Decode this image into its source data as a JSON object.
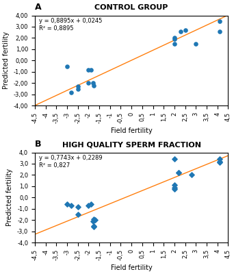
{
  "chart_data": [
    {
      "type": "scatter",
      "title": "CONTROL GROUP",
      "panel_label": "A",
      "annotations": [
        "y = 0,8895x + 0,0245",
        "R² = 0,8895"
      ],
      "slope": 0.8895,
      "intercept": 0.0245,
      "marker": "circle",
      "x": [
        -3.0,
        -2.8,
        -2.5,
        -2.0,
        -1.9,
        -1.8,
        -1.75,
        -2.5,
        -2.0,
        2.0,
        2.0,
        2.0,
        2.3,
        2.5,
        3.0,
        4.1,
        4.1
      ],
      "values": [
        -0.5,
        -2.8,
        -2.5,
        -0.8,
        -0.8,
        -2.0,
        -2.2,
        -2.3,
        -2.0,
        2.0,
        1.9,
        1.5,
        2.6,
        2.7,
        1.5,
        3.5,
        2.6
      ],
      "xlim": [
        -4.5,
        4.5
      ],
      "ylim": [
        -4.0,
        4.0
      ],
      "xticks": [
        {
          "value": -4.5,
          "label": "-4,5"
        },
        -4,
        {
          "value": -3.5,
          "label": "-3,5"
        },
        -3,
        {
          "value": -2.5,
          "label": "-2,5"
        },
        -2,
        {
          "value": -1.5,
          "label": "-1,5"
        },
        -1,
        {
          "value": -0.5,
          "label": "-0,5"
        },
        0,
        {
          "value": 0.5,
          "label": "0,5"
        },
        1,
        {
          "value": 1.5,
          "label": "1,5"
        },
        2,
        {
          "value": 2.5,
          "label": "2,5"
        },
        3,
        {
          "value": 3.5,
          "label": "3,5"
        },
        4,
        {
          "value": 4.5,
          "label": "4,5"
        }
      ],
      "yticks": [
        {
          "value": -4.0,
          "label": "-4,00"
        },
        {
          "value": -3.0,
          "label": "-3,00"
        },
        {
          "value": -2.0,
          "label": "-2,00"
        },
        {
          "value": -1.0,
          "label": "-1,00"
        },
        {
          "value": 0.0,
          "label": "0,00"
        },
        {
          "value": 1.0,
          "label": "1,00"
        },
        {
          "value": 2.0,
          "label": "2,00"
        },
        {
          "value": 3.0,
          "label": "3,00"
        },
        {
          "value": 4.0,
          "label": "4,00"
        }
      ],
      "xlabel": "Field fertility",
      "ylabel": "Predicted fertility",
      "grid": false
    },
    {
      "type": "scatter",
      "title": "HIGH QUALITY SPERM FRACTION",
      "panel_label": "B",
      "annotations": [
        "y = 0,7743x + 0,2289",
        "R² = 0,827"
      ],
      "slope": 0.7743,
      "intercept": 0.2289,
      "marker": "diamond",
      "x": [
        -3.0,
        -2.8,
        -2.5,
        -2.5,
        -2.0,
        -1.9,
        -1.8,
        -1.75,
        -1.75,
        -1.75,
        -1.7,
        2.0,
        2.0,
        2.0,
        2.0,
        2.2,
        2.2,
        2.8,
        4.1,
        4.1,
        4.1
      ],
      "values": [
        -0.6,
        -0.7,
        -0.8,
        -1.5,
        -0.7,
        -0.6,
        -2.1,
        -2.5,
        -2.6,
        -1.9,
        -2.0,
        3.4,
        1.1,
        0.85,
        0.75,
        2.2,
        2.2,
        2.0,
        3.4,
        3.2,
        3.1
      ],
      "xlim": [
        -4.5,
        4.5
      ],
      "ylim": [
        -4.0,
        4.0
      ],
      "xticks": [
        {
          "value": -4.5,
          "label": "-4,5"
        },
        -4,
        {
          "value": -3.5,
          "label": "-3,5"
        },
        -3,
        {
          "value": -2.5,
          "label": "-2,5"
        },
        -2,
        {
          "value": -1.5,
          "label": "-1,5"
        },
        -1,
        {
          "value": -0.5,
          "label": "-0,5"
        },
        0,
        {
          "value": 0.5,
          "label": "0,5"
        },
        1,
        {
          "value": 1.5,
          "label": "1,5"
        },
        2,
        {
          "value": 2.5,
          "label": "2,5"
        },
        3,
        {
          "value": 3.5,
          "label": "3,5"
        },
        4,
        {
          "value": 4.5,
          "label": "4,5"
        }
      ],
      "yticks": [
        {
          "value": -4.0,
          "label": "-4,0"
        },
        {
          "value": -3.0,
          "label": "-3,0"
        },
        {
          "value": -2.0,
          "label": "-2,0"
        },
        {
          "value": -1.0,
          "label": "-1,0"
        },
        {
          "value": 0.0,
          "label": "0,0"
        },
        {
          "value": 1.0,
          "label": "1,0"
        },
        {
          "value": 2.0,
          "label": "2,0"
        },
        {
          "value": 3.0,
          "label": "3,0"
        },
        {
          "value": 4.0,
          "label": "4,0"
        }
      ],
      "xlabel": "Field fertility",
      "ylabel": "Predicted fertility",
      "grid": false
    }
  ]
}
